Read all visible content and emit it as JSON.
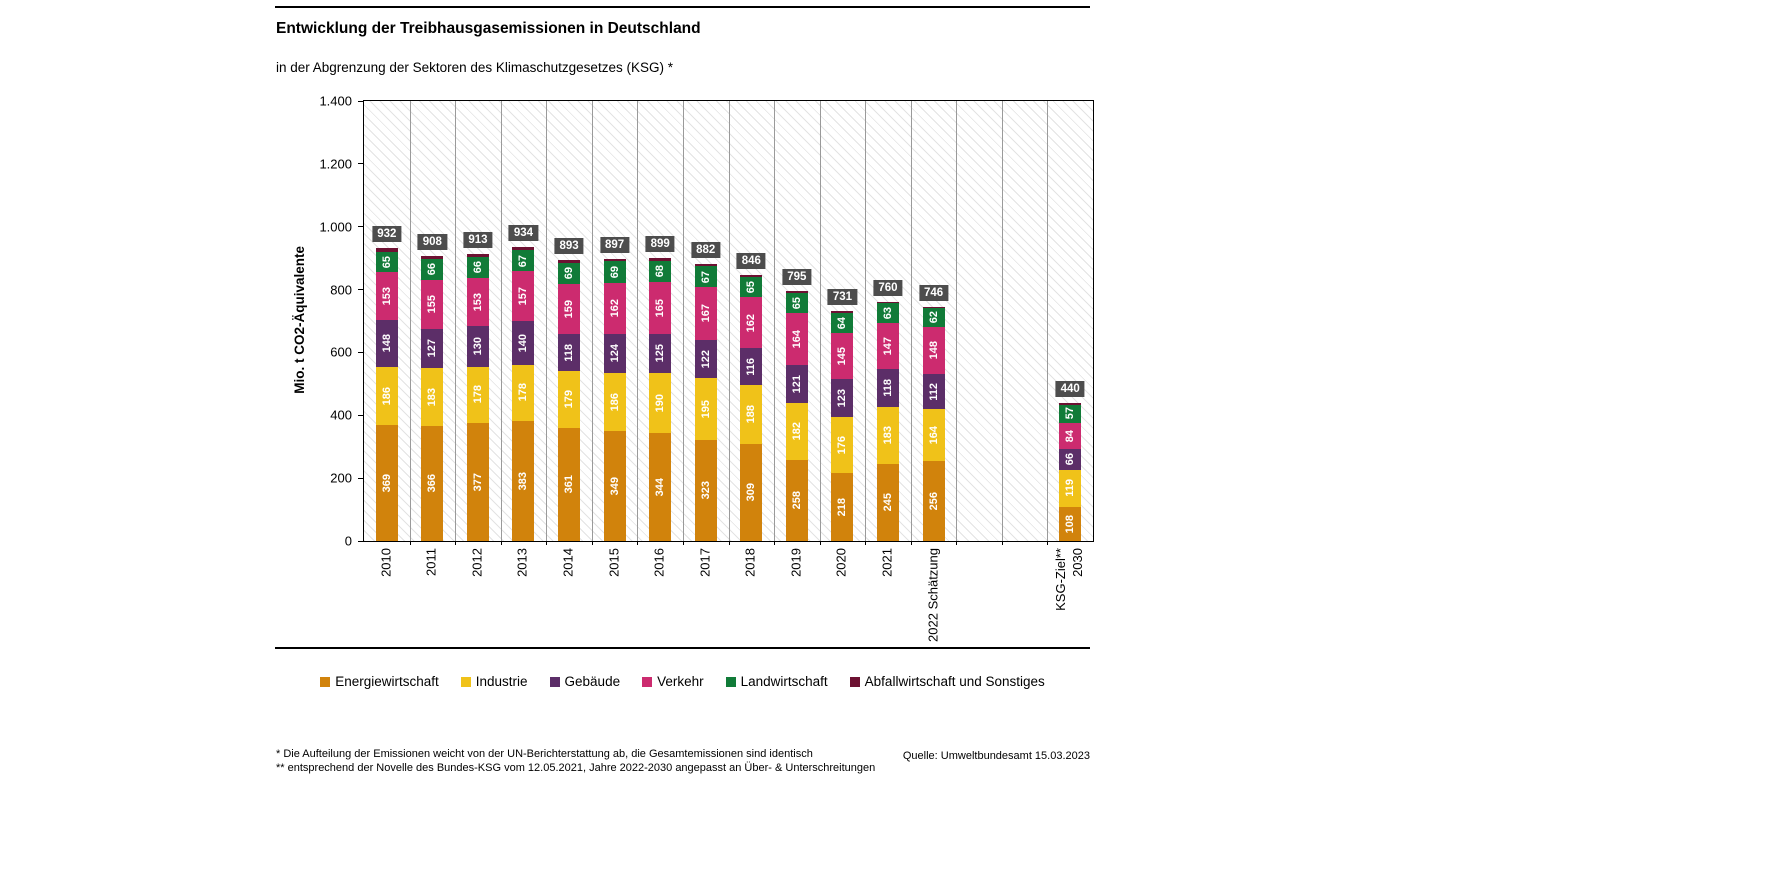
{
  "header": {
    "title": "Entwicklung der Treibhausgasemissionen in Deutschland",
    "subtitle": "in der Abgrenzung der Sektoren des Klimaschutzgesetzes (KSG) *"
  },
  "chart_data": {
    "type": "bar",
    "stacked": true,
    "title": "Entwicklung der Treibhausgasemissionen in Deutschland",
    "ylabel": "Mio. t CO2-Äquivalente",
    "ylim": [
      0,
      1400
    ],
    "ytick_step": 200,
    "yticks": [
      "0",
      "200",
      "400",
      "600",
      "800",
      "1.000",
      "1.200",
      "1.400"
    ],
    "grid": "vertical-only",
    "legend_position": "bottom",
    "categories": [
      "2010",
      "2011",
      "2012",
      "2013",
      "2014",
      "2015",
      "2016",
      "2017",
      "2018",
      "2019",
      "2020",
      "2021",
      "2022 Schätzung",
      "KSG-Ziel**\n2030"
    ],
    "slots": [
      0,
      1,
      2,
      3,
      4,
      5,
      6,
      7,
      8,
      9,
      10,
      11,
      12,
      15
    ],
    "num_slots": 16,
    "series": [
      {
        "name": "Energiewirtschaft",
        "color": "#D1830C",
        "values": [
          369,
          366,
          377,
          383,
          361,
          349,
          344,
          323,
          309,
          258,
          218,
          245,
          256,
          108
        ]
      },
      {
        "name": "Industrie",
        "color": "#F0C219",
        "values": [
          186,
          183,
          178,
          178,
          179,
          186,
          190,
          195,
          188,
          182,
          176,
          183,
          164,
          119
        ]
      },
      {
        "name": "Gebäude",
        "color": "#5C2E68",
        "values": [
          148,
          127,
          130,
          140,
          118,
          124,
          125,
          122,
          116,
          121,
          123,
          118,
          112,
          66
        ]
      },
      {
        "name": "Verkehr",
        "color": "#CC2B6F",
        "values": [
          153,
          155,
          153,
          157,
          159,
          162,
          165,
          167,
          162,
          164,
          145,
          147,
          148,
          84
        ]
      },
      {
        "name": "Landwirtschaft",
        "color": "#117B38",
        "values": [
          65,
          66,
          66,
          67,
          69,
          69,
          68,
          67,
          65,
          65,
          64,
          63,
          62,
          57
        ]
      },
      {
        "name": "Abfallwirtschaft und Sonstiges",
        "color": "#6D1132",
        "values": [
          11,
          11,
          9,
          9,
          7,
          7,
          7,
          8,
          6,
          5,
          5,
          4,
          4,
          6
        ],
        "show_labels": false
      }
    ],
    "totals": [
      932,
      908,
      913,
      934,
      893,
      897,
      899,
      882,
      846,
      795,
      731,
      760,
      746,
      440
    ],
    "total_box_color": "#4d4d4d"
  },
  "footnotes": {
    "line1": "* Die Aufteilung der Emissionen weicht von der UN-Berichterstattung ab, die Gesamtemissionen sind identisch",
    "line2": "** entsprechend der Novelle des Bundes-KSG vom 12.05.2021, Jahre 2022-2030 angepasst an Über- & Unterschreitungen"
  },
  "source": "Quelle: Umweltbundesamt  15.03.2023"
}
